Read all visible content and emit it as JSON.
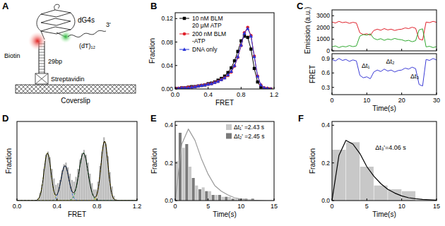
{
  "diagram": {
    "panel": "A",
    "labels": {
      "structure": "dG4s",
      "biotin": "Biotin",
      "length": "29bp",
      "protein": "Streptavidin",
      "tail": "(dT)₁₂",
      "end": "3'",
      "surface": "Coverslip"
    }
  },
  "chart_data": [
    {
      "title": "B",
      "type": "line",
      "x_label": "FRET",
      "y_label": "Fraction",
      "x": [
        0,
        0.04,
        0.08,
        0.12,
        0.16,
        0.2,
        0.24,
        0.28,
        0.32,
        0.36,
        0.4,
        0.44,
        0.48,
        0.52,
        0.56,
        0.6,
        0.64,
        0.68,
        0.72,
        0.76,
        0.8,
        0.84,
        0.88,
        0.92,
        0.96,
        1.0,
        1.04,
        1.08,
        1.12,
        1.16
      ],
      "xlim": [
        0,
        1.2
      ],
      "xticks": [
        {
          "value": 0,
          "label": "0.0"
        },
        {
          "value": 0.4,
          "label": "0.4"
        },
        {
          "value": 0.8,
          "label": "0.8"
        },
        {
          "value": 1.2,
          "label": "1.2"
        }
      ],
      "ylim": [
        0,
        0.13
      ],
      "yticks": [
        {
          "value": 0,
          "label": "0.00"
        },
        {
          "value": 0.04,
          "label": "0.04"
        },
        {
          "value": 0.08,
          "label": "0.08"
        },
        {
          "value": 0.12,
          "label": "0.12"
        }
      ],
      "legend": "upper left",
      "series": [
        {
          "name": "10 nM BLM\n20 μM ATP",
          "color": "#000000",
          "marker": "square",
          "values": [
            0.001,
            0.001,
            0.002,
            0.002,
            0.003,
            0.004,
            0.004,
            0.005,
            0.006,
            0.007,
            0.009,
            0.01,
            0.012,
            0.015,
            0.018,
            0.022,
            0.028,
            0.036,
            0.048,
            0.064,
            0.082,
            0.09,
            0.088,
            0.068,
            0.035,
            0.012,
            0.003,
            0.001,
            0.0,
            0.0
          ]
        },
        {
          "name": "200 nM BLM\n-ATP",
          "color": "#e0202a",
          "marker": "circle",
          "values": [
            0.001,
            0.001,
            0.002,
            0.002,
            0.003,
            0.003,
            0.004,
            0.005,
            0.006,
            0.007,
            0.008,
            0.009,
            0.011,
            0.013,
            0.016,
            0.019,
            0.023,
            0.029,
            0.039,
            0.054,
            0.074,
            0.096,
            0.105,
            0.091,
            0.056,
            0.022,
            0.007,
            0.002,
            0.001,
            0.0
          ]
        },
        {
          "name": "DNA only",
          "color": "#2a35d8",
          "marker": "triangle",
          "values": [
            0.001,
            0.001,
            0.002,
            0.002,
            0.002,
            0.003,
            0.004,
            0.005,
            0.006,
            0.007,
            0.008,
            0.009,
            0.011,
            0.013,
            0.016,
            0.019,
            0.024,
            0.03,
            0.04,
            0.055,
            0.075,
            0.095,
            0.103,
            0.09,
            0.055,
            0.022,
            0.007,
            0.002,
            0.001,
            0.0
          ]
        }
      ]
    },
    {
      "title": "C",
      "type": "line",
      "y_label": "Emission (a.u.)",
      "x": [
        0,
        1,
        2,
        3,
        4,
        5,
        6,
        7,
        8,
        9,
        10,
        11,
        12,
        13,
        14,
        15,
        16,
        17,
        18,
        19,
        20,
        21,
        22,
        23,
        24,
        25,
        26,
        27,
        28,
        29,
        30
      ],
      "xlim": [
        0,
        30
      ],
      "xticks": [
        0,
        10,
        20,
        30
      ],
      "ylim": [
        0,
        3500
      ],
      "yticks": [
        0,
        1000,
        2000,
        3000
      ],
      "tick_labels": "y",
      "series": [
        {
          "color": "#e0202a",
          "values": [
            2460,
            2380,
            2520,
            2410,
            2460,
            2350,
            2440,
            2380,
            1540,
            1400,
            1460,
            1340,
            1740,
            1850,
            1760,
            1900,
            1790,
            1850,
            1740,
            1820,
            1850,
            1960,
            1900,
            2020,
            1930,
            1010,
            920,
            2460,
            2410,
            2520,
            2440
          ]
        },
        {
          "color": "#2fa82f",
          "values": [
            340,
            420,
            280,
            390,
            340,
            450,
            360,
            420,
            1260,
            1400,
            1340,
            1460,
            1060,
            950,
            1040,
            900,
            1010,
            950,
            1060,
            980,
            950,
            840,
            900,
            780,
            870,
            1790,
            1880,
            340,
            390,
            280,
            360
          ]
        }
      ]
    },
    {
      "type": "line",
      "x_label": "Time(s)",
      "y_label": "FRET",
      "x": [
        0,
        1,
        2,
        3,
        4,
        5,
        6,
        7,
        8,
        9,
        10,
        11,
        12,
        13,
        14,
        15,
        16,
        17,
        18,
        19,
        20,
        21,
        22,
        23,
        24,
        25,
        26,
        27,
        28,
        29,
        30
      ],
      "xlim": [
        0,
        30
      ],
      "xticks": [
        0,
        10,
        20,
        30
      ],
      "ylim": [
        0.15,
        1.0
      ],
      "yticks": [
        0.3,
        0.6,
        0.9
      ],
      "series": [
        {
          "color": "#3b3bd6",
          "values": [
            0.88,
            0.85,
            0.9,
            0.86,
            0.88,
            0.84,
            0.87,
            0.85,
            0.55,
            0.5,
            0.52,
            0.48,
            0.62,
            0.66,
            0.63,
            0.68,
            0.64,
            0.66,
            0.62,
            0.65,
            0.66,
            0.7,
            0.68,
            0.72,
            0.69,
            0.36,
            0.33,
            0.88,
            0.86,
            0.9,
            0.87
          ]
        }
      ],
      "annotations": [
        {
          "text": "Δt₁",
          "x": 8.5,
          "y": 0.7
        },
        {
          "text": "Δt₂",
          "x": 15.5,
          "y": 0.8
        },
        {
          "text": "Δt₃",
          "x": 22.5,
          "y": 0.48
        }
      ]
    },
    {
      "title": "D",
      "type": "histogram",
      "x_label": "FRET",
      "y_label": "Fraction",
      "bins": [
        0.2,
        0.22,
        0.24,
        0.26,
        0.28,
        0.3,
        0.32,
        0.34,
        0.36,
        0.38,
        0.4,
        0.42,
        0.44,
        0.46,
        0.48,
        0.5,
        0.52,
        0.54,
        0.56,
        0.58,
        0.6,
        0.62,
        0.64,
        0.66,
        0.68,
        0.7,
        0.72,
        0.74,
        0.76,
        0.78,
        0.8,
        0.82,
        0.84,
        0.86,
        0.88,
        0.9,
        0.92,
        0.94,
        0.96,
        0.98,
        1.0
      ],
      "values": [
        0.003,
        0.01,
        0.02,
        0.04,
        0.058,
        0.062,
        0.055,
        0.04,
        0.028,
        0.02,
        0.022,
        0.026,
        0.038,
        0.046,
        0.048,
        0.042,
        0.034,
        0.026,
        0.024,
        0.03,
        0.04,
        0.052,
        0.06,
        0.064,
        0.058,
        0.048,
        0.034,
        0.022,
        0.014,
        0.014,
        0.024,
        0.044,
        0.062,
        0.08,
        0.072,
        0.056,
        0.036,
        0.018,
        0.006,
        0.002
      ],
      "color": "#b4b4b4",
      "xlim": [
        0,
        1.2
      ],
      "xticks": [
        {
          "value": 0,
          "label": "0.0"
        },
        {
          "value": 0.4,
          "label": "0.4"
        },
        {
          "value": 0.8,
          "label": "0.8"
        },
        {
          "value": 1.2,
          "label": "1.2"
        }
      ],
      "ylim": [
        0,
        0.1
      ],
      "tick_labels": "x",
      "fits": [
        {
          "center": 0.305,
          "sigma": 0.035,
          "amplitude": 0.06,
          "color": "#c9c93a",
          "line_style": "dashed"
        },
        {
          "center": 0.48,
          "sigma": 0.04,
          "amplitude": 0.044,
          "color": "#4f7fd0",
          "line_style": "dashed"
        },
        {
          "center": 0.665,
          "sigma": 0.045,
          "amplitude": 0.06,
          "color": "#3f9f4f",
          "line_style": "dashed"
        },
        {
          "center": 0.875,
          "sigma": 0.035,
          "amplitude": 0.075,
          "color": "#d4b52a",
          "line_style": "dashed"
        }
      ]
    },
    {
      "title": "E",
      "type": "histogram",
      "x_label": "Time(s)",
      "y_label": "Fraction",
      "bins": [
        0,
        1,
        2,
        3,
        4,
        5,
        6,
        7,
        8,
        9,
        10,
        11,
        12
      ],
      "series": [
        {
          "name": "Δt₁' =2.43 s",
          "color": "#c8c8c8",
          "values": [
            0.21,
            0.28,
            0.18,
            0.08,
            0.07,
            0.05,
            0.03,
            0.02,
            0.02,
            0.01,
            0.01,
            0.0
          ]
        },
        {
          "name": "Δt₂' =2.45 s",
          "color": "#7a7a7a",
          "values": [
            0.36,
            0.3,
            0.12,
            0.06,
            0.05,
            0.03,
            0.03,
            0.02,
            0.01,
            0.01,
            0.01,
            0.01
          ]
        }
      ],
      "fit": {
        "color": "#9a9a9a",
        "x": [
          0,
          1,
          2,
          3,
          4,
          5,
          6,
          7,
          8,
          9,
          10,
          11,
          12,
          13,
          14,
          15
        ],
        "values": [
          0,
          0.3,
          0.38,
          0.32,
          0.22,
          0.14,
          0.08,
          0.05,
          0.03,
          0.015,
          0.008,
          0.004,
          0.002,
          0.001,
          0,
          0
        ]
      },
      "xlim": [
        0,
        15
      ],
      "xticks": [
        0,
        5,
        10,
        15
      ],
      "ylim": [
        0,
        0.42
      ],
      "yticks": [
        {
          "value": 0,
          "label": "0.0"
        },
        {
          "value": 0.2,
          "label": "0.2"
        },
        {
          "value": 0.4,
          "label": "0.4"
        }
      ],
      "legend": "upper right"
    },
    {
      "title": "F",
      "type": "histogram",
      "x_label": "Time(s)",
      "y_label": "Fraction",
      "bins": [
        0,
        2,
        4,
        6,
        8,
        10,
        12
      ],
      "series": [
        {
          "color": "#c8c8c8",
          "values": [
            0.27,
            0.31,
            0.18,
            0.08,
            0.06,
            0.05
          ]
        }
      ],
      "fit": {
        "color": "#000000",
        "x": [
          0,
          1,
          2,
          3,
          4,
          5,
          6,
          7,
          8,
          9,
          10,
          11,
          12,
          13,
          14,
          15
        ],
        "values": [
          0,
          0.24,
          0.32,
          0.3,
          0.25,
          0.18,
          0.13,
          0.09,
          0.06,
          0.04,
          0.025,
          0.015,
          0.01,
          0.006,
          0.004,
          0.002
        ]
      },
      "xlim": [
        0,
        15
      ],
      "xticks": [
        0,
        5,
        10,
        15
      ],
      "ylim": [
        0,
        0.42
      ],
      "yticks": [
        {
          "value": 0,
          "label": "0.0"
        },
        {
          "value": 0.2,
          "label": "0.2"
        },
        {
          "value": 0.4,
          "label": "0.4"
        }
      ],
      "annotations": [
        {
          "text": "Δt₃'=4.06 s",
          "x": 6.2,
          "y": 0.27
        }
      ]
    }
  ]
}
